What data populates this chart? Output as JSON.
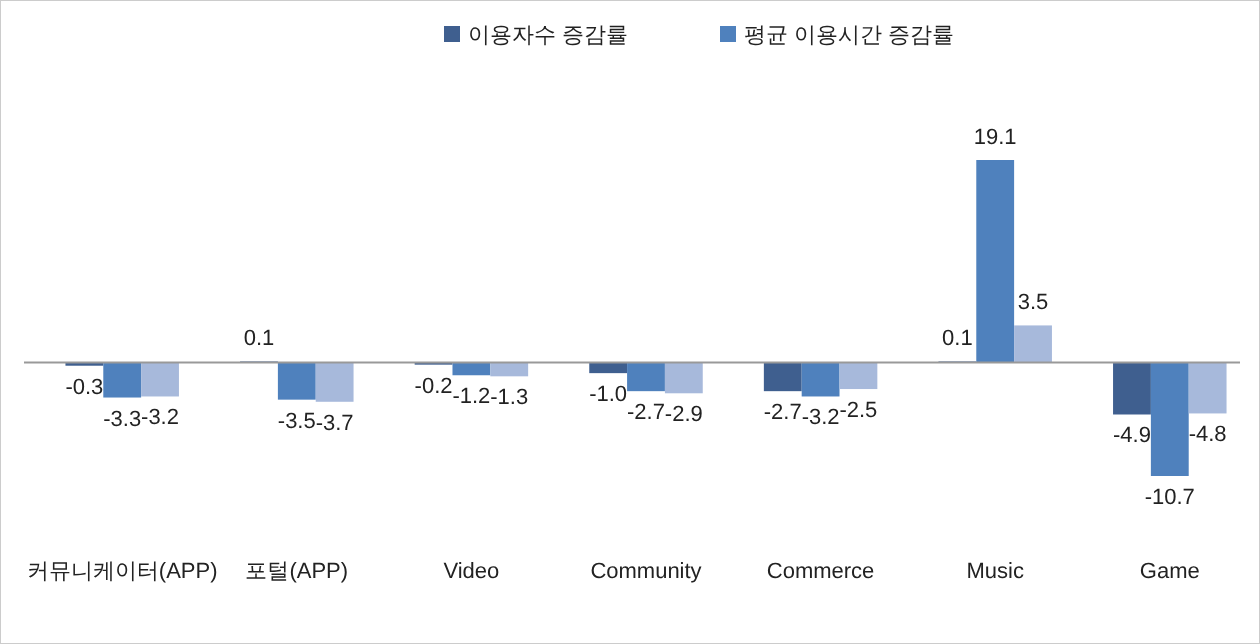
{
  "chart_data": {
    "type": "bar",
    "categories": [
      "커뮤니케이터(APP)",
      "포털(APP)",
      "Video",
      "Community",
      "Commerce",
      "Music",
      "Game"
    ],
    "series": [
      {
        "name": "이용자수 증감률",
        "color": "#3f5f8f",
        "values": [
          -0.3,
          0.1,
          -0.2,
          -1.0,
          -2.7,
          0.1,
          -4.9
        ],
        "value_labels": [
          "-0.3",
          "0.1",
          "-0.2",
          "-1.0",
          "-2.7",
          "0.1",
          "-4.9"
        ]
      },
      {
        "name": "평균 이용시간 증감률",
        "color": "#4f81bd",
        "values": [
          -3.3,
          -3.5,
          -1.2,
          -2.7,
          -3.2,
          19.1,
          -10.7
        ],
        "value_labels": [
          "-3.3",
          "-3.5",
          "-1.2",
          "-2.7",
          "-3.2",
          "19.1",
          "-10.7"
        ]
      },
      {
        "color": "#a7b9db",
        "values": [
          -3.2,
          -3.7,
          -1.3,
          -2.9,
          -2.5,
          3.5,
          -4.8
        ],
        "value_labels": [
          "-3.2",
          "-3.7",
          "-1.3",
          "-2.9",
          "-2.5",
          "3.5",
          "-4.8"
        ]
      }
    ],
    "legend": "top"
  }
}
